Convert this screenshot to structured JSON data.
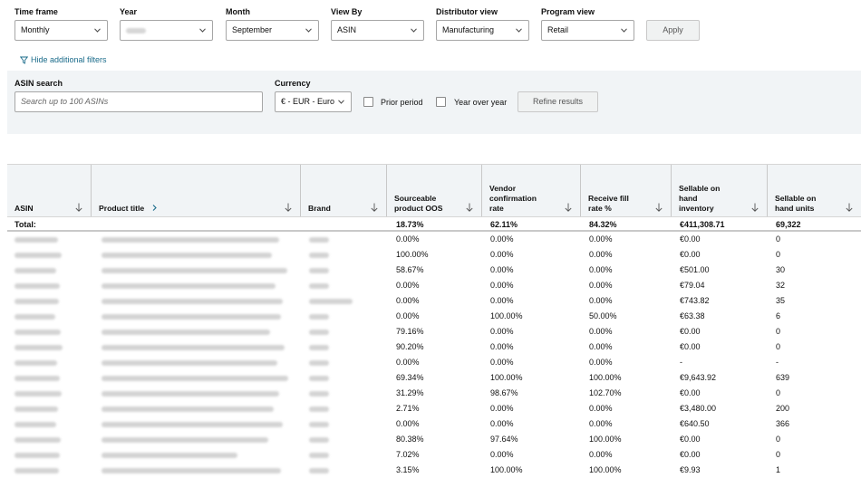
{
  "filters": {
    "time_frame": {
      "label": "Time frame",
      "value": "Monthly"
    },
    "year": {
      "label": "Year",
      "value": ""
    },
    "month": {
      "label": "Month",
      "value": "September"
    },
    "view_by": {
      "label": "View By",
      "value": "ASIN"
    },
    "distributor_view": {
      "label": "Distributor view",
      "value": "Manufacturing"
    },
    "program_view": {
      "label": "Program view",
      "value": "Retail"
    },
    "apply_label": "Apply",
    "hide_additional": "Hide additional filters"
  },
  "additional": {
    "asin_search_label": "ASIN search",
    "asin_search_placeholder": "Search up to 100 ASINs",
    "currency_label": "Currency",
    "currency_value": "€ - EUR - Euro",
    "prior_period": "Prior period",
    "year_over_year": "Year over year",
    "refine": "Refine results"
  },
  "table": {
    "headers": [
      "ASIN",
      "Product title",
      "Brand",
      "Sourceable product OOS",
      "Vendor confirmation rate",
      "Receive fill rate %",
      "Sellable on hand inventory",
      "Sellable on hand units"
    ],
    "total_label": "Total:",
    "totals": {
      "oos": "18.73%",
      "vcr": "62.11%",
      "fill": "84.32%",
      "inventory": "€411,308.71",
      "units": "69,322"
    },
    "rows": [
      {
        "oos": "0.00%",
        "vcr": "0.00%",
        "fill": "0.00%",
        "inv": "€0.00",
        "units": "0"
      },
      {
        "oos": "100.00%",
        "vcr": "0.00%",
        "fill": "0.00%",
        "inv": "€0.00",
        "units": "0"
      },
      {
        "oos": "58.67%",
        "vcr": "0.00%",
        "fill": "0.00%",
        "inv": "€501.00",
        "units": "30"
      },
      {
        "oos": "0.00%",
        "vcr": "0.00%",
        "fill": "0.00%",
        "inv": "€79.04",
        "units": "32"
      },
      {
        "oos": "0.00%",
        "vcr": "0.00%",
        "fill": "0.00%",
        "inv": "€743.82",
        "units": "35"
      },
      {
        "oos": "0.00%",
        "vcr": "100.00%",
        "fill": "50.00%",
        "inv": "€63.38",
        "units": "6"
      },
      {
        "oos": "79.16%",
        "vcr": "0.00%",
        "fill": "0.00%",
        "inv": "€0.00",
        "units": "0"
      },
      {
        "oos": "90.20%",
        "vcr": "0.00%",
        "fill": "0.00%",
        "inv": "€0.00",
        "units": "0"
      },
      {
        "oos": "0.00%",
        "vcr": "0.00%",
        "fill": "0.00%",
        "inv": "-",
        "units": "-"
      },
      {
        "oos": "69.34%",
        "vcr": "100.00%",
        "fill": "100.00%",
        "inv": "€9,643.92",
        "units": "639"
      },
      {
        "oos": "31.29%",
        "vcr": "98.67%",
        "fill": "102.70%",
        "inv": "€0.00",
        "units": "0"
      },
      {
        "oos": "2.71%",
        "vcr": "0.00%",
        "fill": "0.00%",
        "inv": "€3,480.00",
        "units": "200"
      },
      {
        "oos": "0.00%",
        "vcr": "0.00%",
        "fill": "0.00%",
        "inv": "€640.50",
        "units": "366"
      },
      {
        "oos": "80.38%",
        "vcr": "97.64%",
        "fill": "100.00%",
        "inv": "€0.00",
        "units": "0"
      },
      {
        "oos": "7.02%",
        "vcr": "0.00%",
        "fill": "0.00%",
        "inv": "€0.00",
        "units": "0"
      },
      {
        "oos": "3.15%",
        "vcr": "100.00%",
        "fill": "100.00%",
        "inv": "€9.93",
        "units": "1"
      }
    ]
  },
  "colors": {
    "accent_link": "#1a6b8a",
    "panel_bg": "#f1f4f6",
    "border": "#a6a6a6"
  }
}
